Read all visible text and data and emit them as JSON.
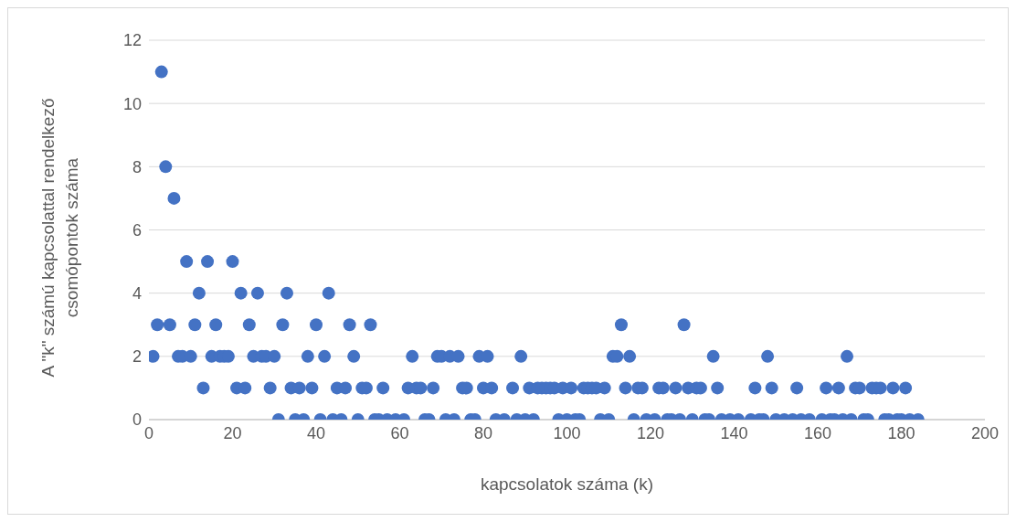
{
  "chart_data": {
    "type": "scatter",
    "xlabel": "kapcsolatok száma (k)",
    "ylabel": "A \"k\" számú kapcsolattal rendelkező csomópontok száma",
    "x": [
      1,
      2,
      3,
      4,
      5,
      6,
      7,
      8,
      9,
      10,
      11,
      12,
      13,
      14,
      15,
      16,
      17,
      18,
      19,
      20,
      21,
      22,
      23,
      24,
      25,
      26,
      27,
      28,
      29,
      30,
      31,
      32,
      33,
      34,
      35,
      36,
      37,
      38,
      39,
      40,
      41,
      42,
      43,
      44,
      45,
      46,
      47,
      48,
      49,
      50,
      51,
      52,
      53,
      54,
      55,
      56,
      57,
      59,
      61,
      62,
      63,
      64,
      65,
      66,
      67,
      68,
      69,
      70,
      71,
      72,
      73,
      74,
      75,
      76,
      77,
      78,
      79,
      80,
      81,
      82,
      83,
      85,
      87,
      88,
      89,
      90,
      91,
      92,
      93,
      94,
      95,
      96,
      97,
      98,
      99,
      100,
      101,
      102,
      103,
      104,
      105,
      106,
      107,
      108,
      109,
      110,
      111,
      112,
      113,
      114,
      115,
      116,
      117,
      118,
      119,
      121,
      122,
      123,
      124,
      125,
      126,
      127,
      128,
      129,
      130,
      131,
      132,
      133,
      134,
      135,
      136,
      137,
      139,
      141,
      144,
      145,
      146,
      147,
      148,
      149,
      150,
      152,
      154,
      155,
      156,
      158,
      161,
      162,
      163,
      164,
      165,
      166,
      167,
      168,
      169,
      170,
      171,
      172,
      173,
      174,
      175,
      176,
      177,
      178,
      179,
      180,
      181,
      182,
      184
    ],
    "values": [
      2,
      3,
      11,
      8,
      3,
      7,
      2,
      2,
      5,
      2,
      3,
      4,
      1,
      5,
      2,
      3,
      2,
      2,
      2,
      5,
      1,
      4,
      1,
      3,
      2,
      4,
      2,
      2,
      1,
      2,
      0,
      3,
      4,
      1,
      0,
      1,
      0,
      2,
      1,
      3,
      0,
      2,
      4,
      0,
      1,
      0,
      1,
      3,
      2,
      0,
      1,
      1,
      3,
      0,
      0,
      1,
      0,
      0,
      0,
      1,
      2,
      1,
      1,
      0,
      0,
      1,
      2,
      2,
      0,
      2,
      0,
      2,
      1,
      1,
      0,
      0,
      2,
      1,
      2,
      1,
      0,
      0,
      1,
      0,
      2,
      0,
      1,
      0,
      1,
      1,
      1,
      1,
      1,
      0,
      1,
      0,
      1,
      0,
      0,
      1,
      1,
      1,
      1,
      0,
      1,
      0,
      2,
      2,
      3,
      1,
      2,
      0,
      1,
      1,
      0,
      0,
      1,
      1,
      0,
      0,
      1,
      0,
      3,
      1,
      0,
      1,
      1,
      0,
      0,
      2,
      1,
      0,
      0,
      0,
      0,
      1,
      0,
      0,
      2,
      1,
      0,
      0,
      0,
      1,
      0,
      0,
      0,
      1,
      0,
      0,
      1,
      0,
      2,
      0,
      1,
      1,
      0,
      0,
      1,
      1,
      1,
      0,
      0,
      1,
      0,
      0,
      1,
      0,
      0
    ],
    "color": "#4472c4",
    "marker": "circle",
    "xlim": [
      0,
      200
    ],
    "xticks": [
      0,
      20,
      40,
      60,
      80,
      100,
      120,
      140,
      160,
      180,
      200
    ],
    "ylim": [
      0,
      12
    ],
    "yticks": [
      0,
      2,
      4,
      6,
      8,
      10,
      12
    ],
    "grid": "y"
  }
}
